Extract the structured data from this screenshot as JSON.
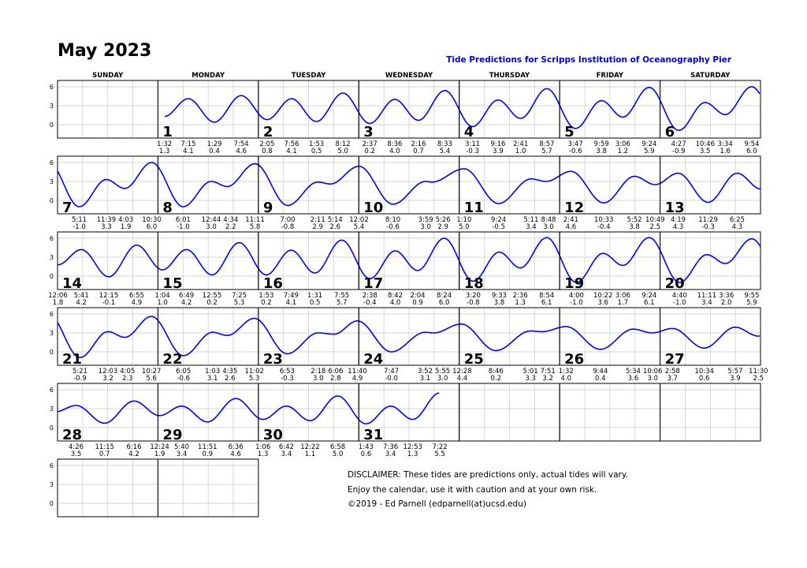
{
  "title": "May 2023",
  "subtitle": "Tide Predictions for Scripps Institution of Oceanography Pier",
  "day_headers": [
    "SUNDAY",
    "MONDAY",
    "TUESDAY",
    "WEDNESDAY",
    "THURSDAY",
    "FRIDAY",
    "SATURDAY"
  ],
  "disclaimer": [
    "DISCLAIMER: These tides are predictions only, actual tides will vary.",
    "Enjoy the calendar, use it with caution and at your own risk.",
    "©2019 - Ed Parnell (edparnell(at)ucsd.edu)"
  ],
  "chart_data": {
    "type": "line",
    "ylim": [
      -2,
      7
    ],
    "yticks": [
      "6",
      "3",
      "0"
    ],
    "grid": true,
    "line_color": "#0000ff",
    "weeks": [
      [
        null,
        {
          "day": "1",
          "tides": [
            {
              "t": "1:32",
              "h": "1.3"
            },
            {
              "t": "7:15",
              "h": "4.1"
            },
            {
              "t": "1:29",
              "h": "0.4"
            },
            {
              "t": "7:54",
              "h": "4.6"
            }
          ]
        },
        {
          "day": "2",
          "tides": [
            {
              "t": "2:05",
              "h": "0.8"
            },
            {
              "t": "7:56",
              "h": "4.1"
            },
            {
              "t": "1:53",
              "h": "0.5"
            },
            {
              "t": "8:12",
              "h": "5.0"
            }
          ]
        },
        {
          "day": "3",
          "tides": [
            {
              "t": "2:37",
              "h": "0.2"
            },
            {
              "t": "8:36",
              "h": "4.0"
            },
            {
              "t": "2:16",
              "h": "0.7"
            },
            {
              "t": "8:33",
              "h": "5.4"
            }
          ]
        },
        {
          "day": "4",
          "tides": [
            {
              "t": "3:11",
              "h": "-0.3"
            },
            {
              "t": "9:16",
              "h": "3.9"
            },
            {
              "t": "2:41",
              "h": "1.0"
            },
            {
              "t": "8:57",
              "h": "5.7"
            }
          ]
        },
        {
          "day": "5",
          "tides": [
            {
              "t": "3:47",
              "h": "-0.6"
            },
            {
              "t": "9:59",
              "h": "3.8"
            },
            {
              "t": "3:06",
              "h": "1.2"
            },
            {
              "t": "9:24",
              "h": "5.9"
            }
          ]
        },
        {
          "day": "6",
          "tides": [
            {
              "t": "4:27",
              "h": "-0.9"
            },
            {
              "t": "10:46",
              "h": "3.5"
            },
            {
              "t": "3:34",
              "h": "1.6"
            },
            {
              "t": "9:54",
              "h": "6.0"
            }
          ]
        }
      ],
      [
        {
          "day": "7",
          "tides": [
            {
              "t": "5:11",
              "h": "-1.0"
            },
            {
              "t": "11:39",
              "h": "3.3"
            },
            {
              "t": "4:03",
              "h": "1.9"
            },
            {
              "t": "10:30",
              "h": "6.0"
            }
          ]
        },
        {
          "day": "8",
          "tides": [
            {
              "t": "6:01",
              "h": "-1.0"
            },
            {
              "t": "12:44",
              "h": "3.0"
            },
            {
              "t": "4:34",
              "h": "2.2"
            },
            {
              "t": "11:11",
              "h": "5.8"
            }
          ]
        },
        {
          "day": "9",
          "tides": [
            {
              "t": "7:00",
              "h": "-0.8"
            },
            {
              "t": "2:11",
              "h": "2.9"
            },
            {
              "t": "5:14",
              "h": "2.6"
            }
          ]
        },
        {
          "day": "10",
          "tides": [
            {
              "t": "12:02",
              "h": "5.4"
            },
            {
              "t": "8:10",
              "h": "-0.6"
            },
            {
              "t": "3:59",
              "h": "3.0"
            },
            {
              "t": "5:26",
              "h": "2.9"
            }
          ]
        },
        {
          "day": "11",
          "tides": [
            {
              "t": "1:10",
              "h": "5.0"
            },
            {
              "t": "9:24",
              "h": "-0.5"
            },
            {
              "t": "5:11",
              "h": "3.4"
            },
            {
              "t": "8:48",
              "h": "3.0"
            }
          ]
        },
        {
          "day": "12",
          "tides": [
            {
              "t": "2:41",
              "h": "4.6"
            },
            {
              "t": "10:33",
              "h": "-0.4"
            },
            {
              "t": "5:52",
              "h": "3.8"
            },
            {
              "t": "10:49",
              "h": "2.5"
            }
          ]
        },
        {
          "day": "13",
          "tides": [
            {
              "t": "4:19",
              "h": "4.3"
            },
            {
              "t": "11:29",
              "h": "-0.3"
            },
            {
              "t": "6:25",
              "h": "4.3"
            }
          ]
        }
      ],
      [
        {
          "day": "14",
          "tides": [
            {
              "t": "12:06",
              "h": "1.8"
            },
            {
              "t": "5:41",
              "h": "4.2"
            },
            {
              "t": "12:15",
              "h": "-0.1"
            },
            {
              "t": "6:55",
              "h": "4.9"
            }
          ]
        },
        {
          "day": "15",
          "tides": [
            {
              "t": "1:04",
              "h": "1.0"
            },
            {
              "t": "6:49",
              "h": "4.2"
            },
            {
              "t": "12:55",
              "h": "0.2"
            },
            {
              "t": "7:25",
              "h": "5.3"
            }
          ]
        },
        {
          "day": "16",
          "tides": [
            {
              "t": "1:53",
              "h": "0.2"
            },
            {
              "t": "7:49",
              "h": "4.1"
            },
            {
              "t": "1:31",
              "h": "0.5"
            },
            {
              "t": "7:55",
              "h": "5.7"
            }
          ]
        },
        {
          "day": "17",
          "tides": [
            {
              "t": "2:38",
              "h": "-0.4"
            },
            {
              "t": "8:42",
              "h": "4.0"
            },
            {
              "t": "2:04",
              "h": "0.9"
            },
            {
              "t": "8:24",
              "h": "6.0"
            }
          ]
        },
        {
          "day": "18",
          "tides": [
            {
              "t": "3:20",
              "h": "-0.8"
            },
            {
              "t": "9:33",
              "h": "3.8"
            },
            {
              "t": "2:36",
              "h": "1.3"
            },
            {
              "t": "8:54",
              "h": "6.1"
            }
          ]
        },
        {
          "day": "19",
          "tides": [
            {
              "t": "4:00",
              "h": "-1.0"
            },
            {
              "t": "10:22",
              "h": "3.6"
            },
            {
              "t": "3:06",
              "h": "1.7"
            },
            {
              "t": "9:24",
              "h": "6.1"
            }
          ]
        },
        {
          "day": "20",
          "tides": [
            {
              "t": "4:40",
              "h": "-1.0"
            },
            {
              "t": "11:11",
              "h": "3.4"
            },
            {
              "t": "3:36",
              "h": "2.0"
            },
            {
              "t": "9:55",
              "h": "5.9"
            }
          ]
        }
      ],
      [
        {
          "day": "21",
          "tides": [
            {
              "t": "5:21",
              "h": "-0.9"
            },
            {
              "t": "12:03",
              "h": "3.2"
            },
            {
              "t": "4:05",
              "h": "2.3"
            },
            {
              "t": "10:27",
              "h": "5.6"
            }
          ]
        },
        {
          "day": "22",
          "tides": [
            {
              "t": "6:05",
              "h": "-0.6"
            },
            {
              "t": "1:03",
              "h": "3.1"
            },
            {
              "t": "4:35",
              "h": "2.6"
            },
            {
              "t": "11:02",
              "h": "5.3"
            }
          ]
        },
        {
          "day": "23",
          "tides": [
            {
              "t": "6:53",
              "h": "-0.3"
            },
            {
              "t": "2:18",
              "h": "3.0"
            },
            {
              "t": "6:06",
              "h": "2.8"
            },
            {
              "t": "11:40",
              "h": "4.9"
            }
          ]
        },
        {
          "day": "24",
          "tides": [
            {
              "t": "7:47",
              "h": "-0.0"
            },
            {
              "t": "3:52",
              "h": "3.1"
            },
            {
              "t": "5:55",
              "h": "3.0"
            }
          ]
        },
        {
          "day": "25",
          "tides": [
            {
              "t": "12:28",
              "h": "4.4"
            },
            {
              "t": "8:46",
              "h": "0.2"
            },
            {
              "t": "5:01",
              "h": "3.3"
            },
            {
              "t": "7:51",
              "h": "3.2"
            }
          ]
        },
        {
          "day": "26",
          "tides": [
            {
              "t": "1:32",
              "h": "4.0"
            },
            {
              "t": "9:44",
              "h": "0.4"
            },
            {
              "t": "5:34",
              "h": "3.6"
            },
            {
              "t": "10:06",
              "h": "3.0"
            }
          ]
        },
        {
          "day": "27",
          "tides": [
            {
              "t": "2:58",
              "h": "3.7"
            },
            {
              "t": "10:34",
              "h": "0.6"
            },
            {
              "t": "5:57",
              "h": "3.9"
            },
            {
              "t": "11:30",
              "h": "2.5"
            }
          ]
        }
      ],
      [
        {
          "day": "28",
          "tides": [
            {
              "t": "4:26",
              "h": "3.5"
            },
            {
              "t": "11:15",
              "h": "0.7"
            },
            {
              "t": "6:16",
              "h": "4.2"
            }
          ]
        },
        {
          "day": "29",
          "tides": [
            {
              "t": "12:24",
              "h": "1.9"
            },
            {
              "t": "5:40",
              "h": "3.4"
            },
            {
              "t": "11:51",
              "h": "0.9"
            },
            {
              "t": "6:36",
              "h": "4.6"
            }
          ]
        },
        {
          "day": "30",
          "tides": [
            {
              "t": "1:06",
              "h": "1.3"
            },
            {
              "t": "6:42",
              "h": "3.4"
            },
            {
              "t": "12:22",
              "h": "1.1"
            },
            {
              "t": "6:58",
              "h": "5.0"
            }
          ]
        },
        {
          "day": "31",
          "tides": [
            {
              "t": "1:43",
              "h": "0.6"
            },
            {
              "t": "7:36",
              "h": "3.4"
            },
            {
              "t": "12:53",
              "h": "1.3"
            },
            {
              "t": "7:22",
              "h": "5.5"
            }
          ]
        },
        null,
        null,
        null
      ],
      [
        null,
        null
      ]
    ]
  }
}
